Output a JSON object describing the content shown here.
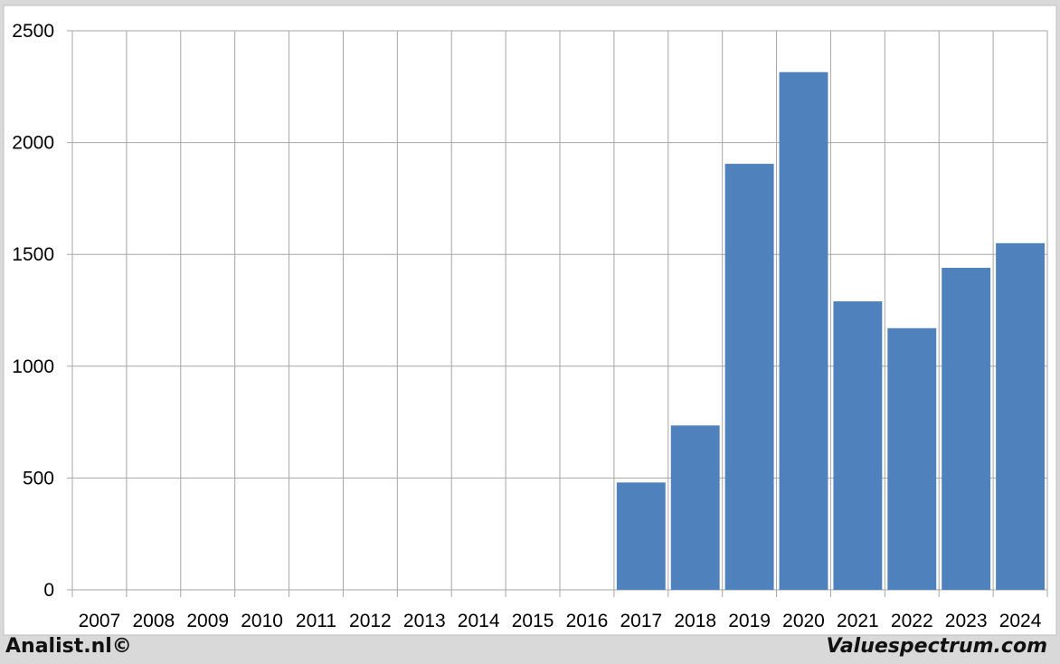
{
  "footer": {
    "left_label": "Analist.nl©",
    "right_label": "Valuespectrum.com"
  },
  "colors": {
    "bar": "#4f81bd",
    "grid": "#a6a6a6",
    "plot_background": "#ffffff",
    "page_background": "#d9d9d9"
  },
  "chart_data": {
    "type": "bar",
    "categories": [
      "2007",
      "2008",
      "2009",
      "2010",
      "2011",
      "2012",
      "2013",
      "2014",
      "2015",
      "2016",
      "2017",
      "2018",
      "2019",
      "2020",
      "2021",
      "2022",
      "2023",
      "2024"
    ],
    "values": [
      0,
      0,
      0,
      0,
      0,
      0,
      0,
      0,
      0,
      0,
      480,
      735,
      1905,
      2315,
      1290,
      1170,
      1440,
      1550
    ],
    "yticks": [
      "0",
      "500",
      "1000",
      "1500",
      "2000",
      "2500"
    ],
    "ylim": [
      0,
      2500
    ],
    "title": "",
    "xlabel": "",
    "ylabel": "",
    "grid": true,
    "legend": "none"
  }
}
